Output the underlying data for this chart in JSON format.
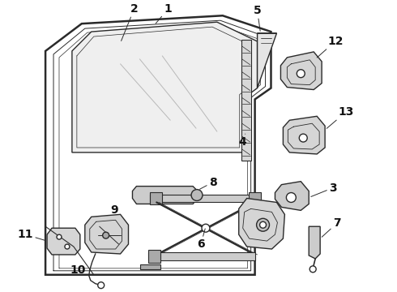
{
  "bg_color": "#ffffff",
  "line_color": "#2a2a2a",
  "label_color": "#111111",
  "label_fontsize": 10,
  "figsize": [
    4.9,
    3.6
  ],
  "dpi": 100
}
